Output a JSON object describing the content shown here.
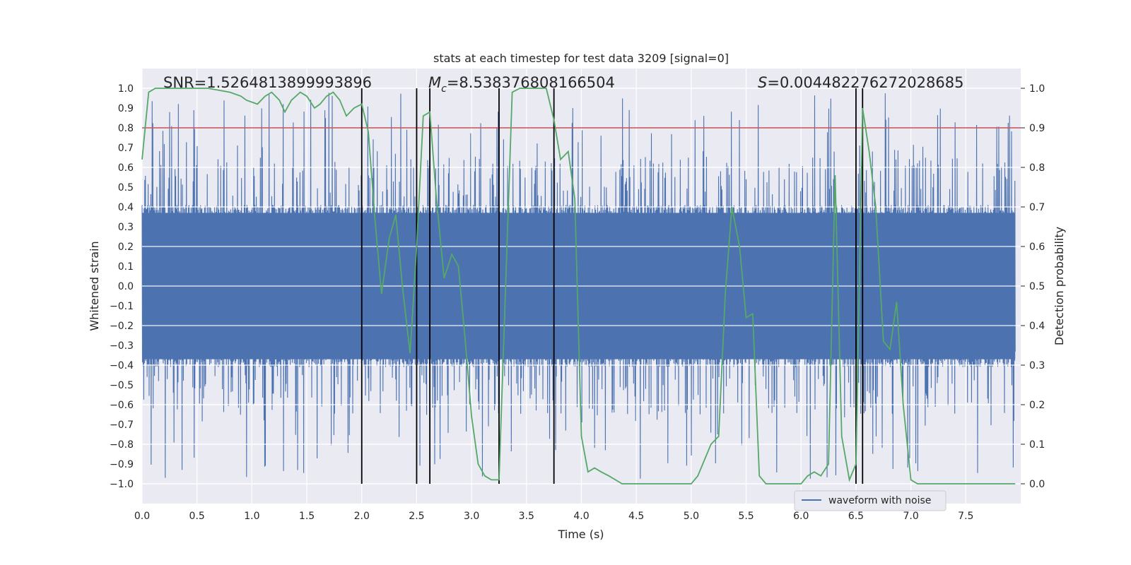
{
  "chart_data": {
    "type": "line",
    "title": "stats at each timestep for test data 3209 [signal=0]",
    "xlabel": "Time (s)",
    "ylabel_left": "Whitened strain",
    "ylabel_right": "Detection probability",
    "xlim": [
      0.0,
      8.0
    ],
    "ylim_left": [
      -1.1,
      1.1
    ],
    "ylim_right": [
      -0.05,
      1.05
    ],
    "x_ticks": [
      "0.0",
      "0.5",
      "1.0",
      "1.5",
      "2.0",
      "2.5",
      "3.0",
      "3.5",
      "4.0",
      "4.5",
      "5.0",
      "5.5",
      "6.0",
      "6.5",
      "7.0",
      "7.5"
    ],
    "y_left_ticks": [
      "1.0",
      "0.9",
      "0.8",
      "0.7",
      "0.6",
      "0.5",
      "0.4",
      "0.3",
      "0.2",
      "0.1",
      "0.0",
      "−0.1",
      "−0.2",
      "−0.3",
      "−0.4",
      "−0.5",
      "−0.6",
      "−0.7",
      "−0.8",
      "−0.9",
      "−1.0"
    ],
    "y_right_ticks": [
      "1.0",
      "0.9",
      "0.8",
      "0.7",
      "0.6",
      "0.5",
      "0.4",
      "0.3",
      "0.2",
      "0.1",
      "0.0"
    ],
    "annotations": {
      "snr": "SNR=1.5264813899993896",
      "mc_prefix": "M",
      "mc_sub": "c",
      "mc_value": "=8.538376808166504",
      "s_prefix": "S",
      "s_value": "=0.004482276272028685"
    },
    "threshold": 0.9,
    "vertical_lines_s": [
      2.0,
      2.5,
      2.62,
      3.25,
      3.75,
      6.5,
      6.56
    ],
    "legend": {
      "label": "waveform with noise",
      "position": "lower-right"
    },
    "series": [
      {
        "name": "waveform with noise",
        "axis": "left",
        "color": "#4c72b0",
        "envelope_hint": "dense noise, core band about ±0.4, spikes to about ±1.0"
      },
      {
        "name": "detection probability",
        "axis": "right",
        "color": "#55a868",
        "x": [
          0.0,
          0.06,
          0.12,
          0.25,
          0.4,
          0.6,
          0.8,
          0.9,
          0.95,
          1.05,
          1.12,
          1.18,
          1.25,
          1.3,
          1.36,
          1.44,
          1.5,
          1.57,
          1.62,
          1.68,
          1.74,
          1.8,
          1.86,
          1.93,
          2.0,
          2.06,
          2.12,
          2.18,
          2.25,
          2.31,
          2.37,
          2.44,
          2.5,
          2.56,
          2.62,
          2.68,
          2.75,
          2.82,
          2.88,
          2.94,
          3.0,
          3.06,
          3.12,
          3.18,
          3.25,
          3.31,
          3.37,
          3.44,
          3.5,
          3.56,
          3.62,
          3.68,
          3.75,
          3.81,
          3.88,
          3.94,
          4.0,
          4.06,
          4.12,
          4.18,
          4.25,
          4.31,
          4.37,
          4.44,
          4.5,
          4.62,
          4.75,
          4.87,
          5.0,
          5.06,
          5.12,
          5.18,
          5.25,
          5.31,
          5.37,
          5.44,
          5.5,
          5.56,
          5.62,
          5.68,
          5.75,
          5.87,
          6.0,
          6.06,
          6.12,
          6.18,
          6.25,
          6.31,
          6.37,
          6.44,
          6.5,
          6.56,
          6.62,
          6.68,
          6.75,
          6.81,
          6.87,
          6.93,
          7.0,
          7.06,
          7.12,
          7.25,
          7.5,
          7.75,
          7.95
        ],
        "y": [
          0.82,
          0.99,
          1.0,
          1.0,
          1.0,
          1.0,
          0.99,
          0.98,
          0.97,
          0.96,
          0.98,
          0.99,
          0.97,
          0.94,
          0.97,
          0.99,
          0.98,
          0.95,
          0.96,
          0.98,
          0.99,
          0.97,
          0.93,
          0.95,
          0.96,
          0.89,
          0.67,
          0.48,
          0.62,
          0.68,
          0.5,
          0.33,
          0.6,
          0.93,
          0.94,
          0.72,
          0.52,
          0.58,
          0.55,
          0.37,
          0.17,
          0.05,
          0.02,
          0.01,
          0.01,
          0.5,
          0.99,
          1.0,
          1.0,
          1.0,
          1.0,
          1.0,
          0.92,
          0.82,
          0.84,
          0.72,
          0.12,
          0.03,
          0.04,
          0.03,
          0.02,
          0.01,
          0.0,
          0.0,
          0.0,
          0.0,
          0.0,
          0.0,
          0.0,
          0.02,
          0.06,
          0.1,
          0.12,
          0.48,
          0.7,
          0.6,
          0.42,
          0.43,
          0.02,
          0.0,
          0.0,
          0.0,
          0.0,
          0.02,
          0.03,
          0.02,
          0.05,
          0.78,
          0.12,
          0.01,
          0.05,
          0.95,
          0.84,
          0.7,
          0.36,
          0.34,
          0.46,
          0.2,
          0.01,
          0.0,
          0.0,
          0.0,
          0.0,
          0.0,
          0.0
        ]
      }
    ]
  }
}
